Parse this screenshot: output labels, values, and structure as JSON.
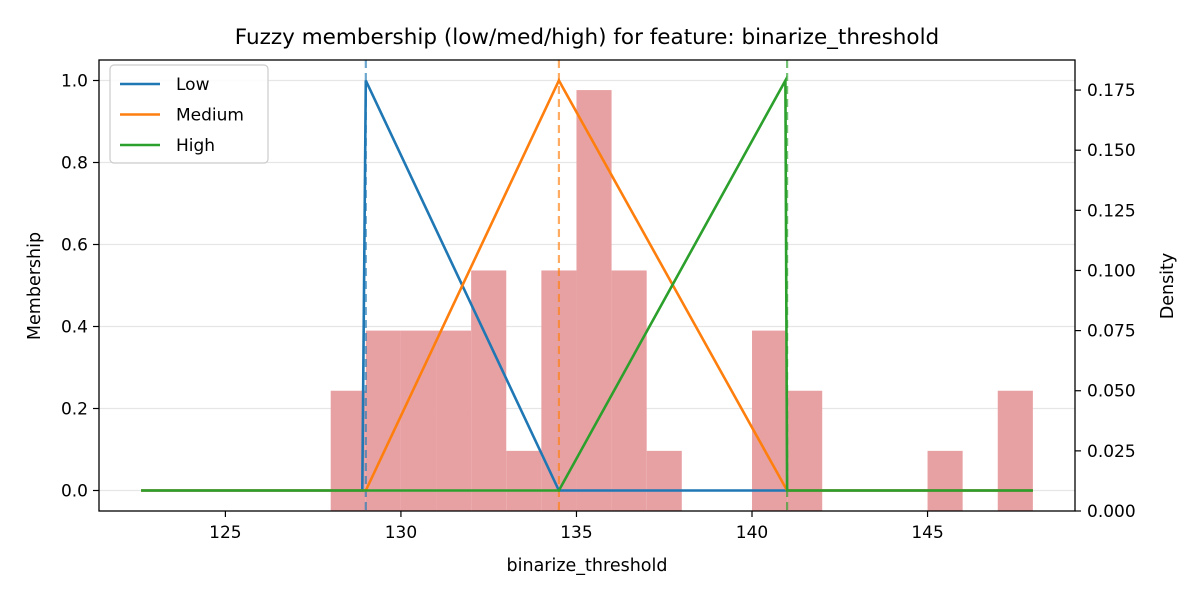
{
  "chart_data": {
    "type": "line",
    "title": "Fuzzy membership (low/med/high) for feature: binarize_threshold",
    "xlabel": "binarize_threshold",
    "ylabel": "Membership",
    "y2label": "Density",
    "xlim": [
      121.4,
      149.2
    ],
    "ylim": [
      -0.05,
      1.05
    ],
    "y2lim": [
      0,
      0.1875
    ],
    "xticks": [
      125,
      130,
      135,
      140,
      145
    ],
    "yticks": [
      0.0,
      0.2,
      0.4,
      0.6,
      0.8,
      1.0
    ],
    "y2ticks": [
      0.0,
      0.025,
      0.05,
      0.075,
      0.1,
      0.125,
      0.15,
      0.175
    ],
    "ytick_labels": [
      "0.0",
      "0.2",
      "0.4",
      "0.6",
      "0.8",
      "1.0"
    ],
    "y2tick_labels": [
      "0.000",
      "0.025",
      "0.050",
      "0.075",
      "0.100",
      "0.125",
      "0.150",
      "0.175"
    ],
    "grid": "y-only",
    "legend": "upper-left",
    "histogram": {
      "color": "#e8a1a3",
      "bins": [
        {
          "x0": 128,
          "x1": 129,
          "density": 0.05
        },
        {
          "x0": 129,
          "x1": 130,
          "density": 0.075
        },
        {
          "x0": 130,
          "x1": 131,
          "density": 0.075
        },
        {
          "x0": 131,
          "x1": 132,
          "density": 0.075
        },
        {
          "x0": 132,
          "x1": 133,
          "density": 0.1
        },
        {
          "x0": 133,
          "x1": 134,
          "density": 0.025
        },
        {
          "x0": 134,
          "x1": 135,
          "density": 0.1
        },
        {
          "x0": 135,
          "x1": 136,
          "density": 0.175
        },
        {
          "x0": 136,
          "x1": 137,
          "density": 0.1
        },
        {
          "x0": 137,
          "x1": 138,
          "density": 0.025
        },
        {
          "x0": 140,
          "x1": 141,
          "density": 0.075
        },
        {
          "x0": 141,
          "x1": 142,
          "density": 0.05
        },
        {
          "x0": 145,
          "x1": 146,
          "density": 0.025
        },
        {
          "x0": 147,
          "x1": 148,
          "density": 0.05
        }
      ]
    },
    "series": [
      {
        "name": "Low",
        "color": "#1f77b4",
        "x": [
          122.6,
          128.9,
          129.0,
          134.5,
          148.0
        ],
        "y": [
          0,
          0,
          1,
          0,
          0
        ]
      },
      {
        "name": "Medium",
        "color": "#ff7f0e",
        "x": [
          122.6,
          129.0,
          134.5,
          141.0,
          148.0
        ],
        "y": [
          0,
          0,
          1,
          0,
          0
        ]
      },
      {
        "name": "High",
        "color": "#2ca02c",
        "x": [
          122.6,
          134.5,
          140.95,
          141.0,
          148.0
        ],
        "y": [
          0,
          0,
          1,
          0,
          0
        ]
      }
    ],
    "vlines": [
      {
        "x": 129.0,
        "color": "#1f77b4"
      },
      {
        "x": 134.5,
        "color": "#ff7f0e"
      },
      {
        "x": 141.0,
        "color": "#2ca02c"
      }
    ]
  }
}
